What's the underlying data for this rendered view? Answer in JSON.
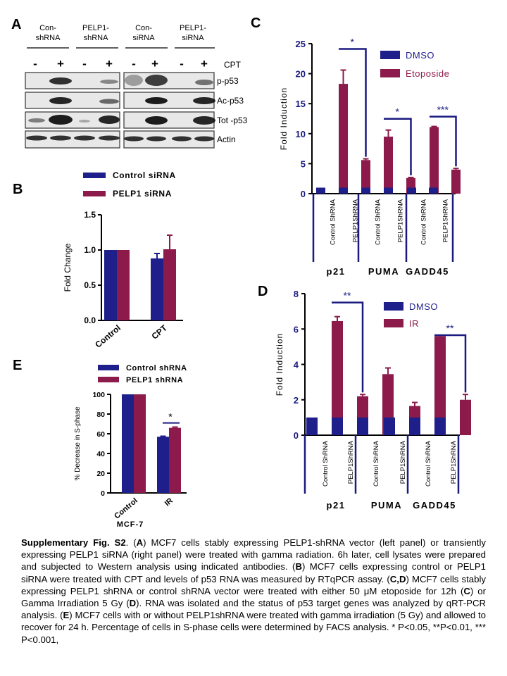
{
  "panelA": {
    "letter": "A",
    "headers": [
      "Con-",
      "shRNA",
      "PELP1-",
      "shRNA",
      "Con-",
      "siRNA",
      "PELP1-",
      "siRNA"
    ],
    "signs": [
      "-",
      "+",
      "-",
      "+",
      "-",
      "+",
      "-",
      "+"
    ],
    "treatment": "CPT",
    "bands": [
      "p-p53",
      "Ac-p53",
      "Tot -p53",
      "Actin"
    ]
  },
  "panelB": {
    "letter": "B"
  },
  "panelC": {
    "letter": "C"
  },
  "panelD": {
    "letter": "D"
  },
  "panelE": {
    "letter": "E",
    "cell_line": "MCF-7"
  },
  "colors": {
    "navy": "#1f1f8c",
    "maroon": "#8c1a4a",
    "axis_blue": "#1a1a80"
  },
  "caption": {
    "title": "Supplementary Fig. S2",
    "p1": ". (",
    "A": "A",
    "p2": ") MCF7 cells stably expressing PELP1-shRNA vector (left panel) or transiently expressing PELP1 siRNA (right panel) were treated with gamma radiation. 6h later, cell lysates were prepared and subjected to Western analysis using indicated antibodies. (",
    "B": "B",
    "p3": ") MCF7 cells expressing control or PELP1 siRNA were treated with CPT and levels of p53 RNA was measured by RTqPCR assay.  (",
    "CD": "C,D",
    "p4": ") MCF7 cells stably expressing PELP1 shRNA or control shRNA vector were treated with either 50 μM etoposide for 12h (",
    "C": "C",
    "p5": ") or Gamma Irradiation 5 Gy (",
    "D": "D",
    "p6": ").  RNA was isolated and the status of p53 target genes was analyzed by qRT-PCR analysis. (",
    "E": "E",
    "p7": ") MCF7 cells with or without PELP1shRNA were treated with gamma irradiation (5 Gy) and allowed to recover for 24 h. Percentage  of cells  in S-phase cells were determined by FACS analysis. * P<0.05, **P<0.01, *** P<0.001,"
  },
  "chart_data": [
    {
      "panel": "B",
      "type": "bar",
      "categories": [
        "Control",
        "CPT"
      ],
      "ylabel": "Fold Change",
      "ylim": [
        0,
        1.5
      ],
      "yticks": [
        "0.0",
        "0.5",
        "1.0",
        "1.5"
      ],
      "legend_position": "top",
      "series": [
        {
          "name": "Control siRNA",
          "values": [
            1.0,
            0.88
          ],
          "errors": [
            0,
            0.07
          ],
          "color": "#1f1f8c"
        },
        {
          "name": "PELP1 siRNA",
          "values": [
            1.0,
            1.01
          ],
          "errors": [
            0,
            0.2
          ],
          "color": "#8c1a4a"
        }
      ]
    },
    {
      "panel": "C",
      "type": "bar",
      "ylabel": "Fold Induction",
      "ylim": [
        0,
        25
      ],
      "yticks": [
        "0",
        "5",
        "10",
        "15",
        "20",
        "25"
      ],
      "legend_position": "top-right",
      "groups": [
        "p21",
        "PUMA",
        "GADD45"
      ],
      "categories": [
        "Control ShRNA",
        "PELP1ShRNA",
        "Control ShRNA",
        "PELP1ShRNA",
        "Control ShRNA",
        "PELP1ShRNA"
      ],
      "series": [
        {
          "name": "DMSO",
          "values": [
            1,
            1,
            1,
            1,
            1,
            1
          ],
          "errors": [
            0,
            0,
            0,
            0,
            0,
            0
          ],
          "color": "#1f1f8c"
        },
        {
          "name": "Etoposide",
          "values": [
            18.3,
            5.6,
            9.5,
            2.6,
            11.1,
            4.0
          ],
          "errors": [
            2.3,
            0.2,
            1.1,
            0.1,
            0.1,
            0.2
          ],
          "color": "#8c1a4a"
        }
      ],
      "significance": [
        {
          "pair": [
            0,
            1
          ],
          "label": "*"
        },
        {
          "pair": [
            2,
            3
          ],
          "label": "*"
        },
        {
          "pair": [
            4,
            5
          ],
          "label": "***"
        }
      ]
    },
    {
      "panel": "D",
      "type": "bar",
      "ylabel": "Fold Induction",
      "ylim": [
        0,
        8
      ],
      "yticks": [
        "0",
        "2",
        "4",
        "6",
        "8"
      ],
      "legend_position": "top-right",
      "groups": [
        "p21",
        "PUMA",
        "GADD45"
      ],
      "categories": [
        "Control ShRNA",
        "PELP1ShRNA",
        "Control ShRNA",
        "PELP1ShRNA",
        "Control ShRNA",
        "PELP1ShRNA"
      ],
      "series": [
        {
          "name": "DMSO",
          "values": [
            1,
            1,
            1,
            1,
            1,
            1
          ],
          "errors": [
            0,
            0,
            0,
            0,
            0,
            0
          ],
          "color": "#1f1f8c"
        },
        {
          "name": "IR",
          "values": [
            6.45,
            2.2,
            3.45,
            1.65,
            5.6,
            2.0
          ],
          "errors": [
            0.25,
            0.1,
            0.35,
            0.2,
            0.05,
            0.3
          ],
          "color": "#8c1a4a"
        }
      ],
      "significance": [
        {
          "pair": [
            0,
            1
          ],
          "label": "**"
        },
        {
          "pair": [
            4,
            5
          ],
          "label": "**"
        }
      ]
    },
    {
      "panel": "E",
      "type": "bar",
      "categories": [
        "Control",
        "IR"
      ],
      "ylabel": "% Decrease in S-phase",
      "ylim": [
        0,
        100
      ],
      "yticks": [
        "0",
        "20",
        "40",
        "60",
        "80",
        "100"
      ],
      "legend_position": "top",
      "series": [
        {
          "name": "Control shRNA",
          "values": [
            100,
            57
          ],
          "errors": [
            0,
            0.5
          ],
          "color": "#1f1f8c"
        },
        {
          "name": "PELP1 shRNA",
          "values": [
            100,
            66
          ],
          "errors": [
            0,
            0.8
          ],
          "color": "#8c1a4a"
        }
      ],
      "significance": [
        {
          "pair": [
            1,
            1
          ],
          "label": "*"
        }
      ]
    }
  ]
}
